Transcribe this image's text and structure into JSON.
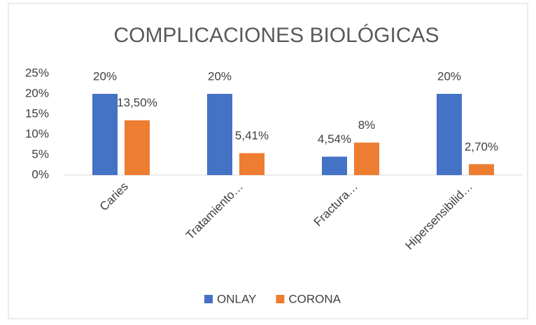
{
  "chart_data": {
    "type": "bar",
    "title": "COMPLICACIONES BIOLÓGICAS",
    "categories": [
      "Caries",
      "Tratamiento…",
      "Fractura…",
      "Hipersensibilid…"
    ],
    "series": [
      {
        "name": "ONLAY",
        "color": "#4472c4",
        "values": [
          20,
          20,
          4.54,
          20
        ],
        "value_labels": [
          "20%",
          "20%",
          "4,54%",
          "20%"
        ]
      },
      {
        "name": "CORONA",
        "color": "#ed7d31",
        "values": [
          13.5,
          5.41,
          8,
          2.7
        ],
        "value_labels": [
          "13,50%",
          "5,41%",
          "8%",
          "2,70%"
        ]
      }
    ],
    "ylim": [
      0,
      25
    ],
    "yticks": [
      {
        "value": 0,
        "label": "0%"
      },
      {
        "value": 5,
        "label": "5%"
      },
      {
        "value": 10,
        "label": "10%"
      },
      {
        "value": 15,
        "label": "15%"
      },
      {
        "value": 20,
        "label": "20%"
      },
      {
        "value": 25,
        "label": "25%"
      }
    ],
    "grid": false,
    "legend": "bottom"
  }
}
